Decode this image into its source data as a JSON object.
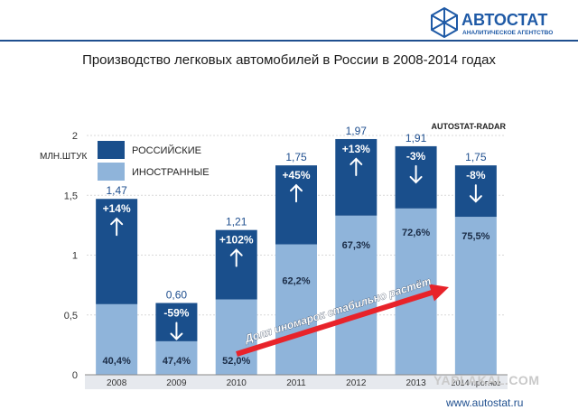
{
  "brand": {
    "name": "АВТОСТАТ",
    "tagline": "АНАЛИТИЧЕСКОЕ АГЕНТСТВО",
    "url": "www.autostat.ru",
    "source": "AUTOSTAT-RADAR"
  },
  "watermark": "YAPLAKAL.COM",
  "colors": {
    "russian": "#1a4f8c",
    "foreign": "#8fb4da",
    "accent": "#e8232a",
    "text_blue": "#1f4f8f"
  },
  "chart_data": {
    "type": "bar",
    "stacked": true,
    "title": "Производство легковых автомобилей в России в 2008-2014 годах",
    "ylabel": "МЛН.ШТУК",
    "ylim": [
      0,
      2
    ],
    "yticks": [
      "0",
      "0,5",
      "1",
      "1,5",
      "2"
    ],
    "ytick_values": [
      0,
      0.5,
      1,
      1.5,
      2
    ],
    "grid": true,
    "legend_position": "top-left",
    "categories": [
      "2008",
      "2009",
      "2010",
      "2011",
      "2012",
      "2013",
      "2014 прогноз"
    ],
    "series": [
      {
        "name": "ИНОСТРАННЫЕ",
        "values": [
          0.59,
          0.28,
          0.63,
          1.09,
          1.33,
          1.39,
          1.32
        ]
      },
      {
        "name": "РОССИЙСКИЕ",
        "values": [
          0.88,
          0.32,
          0.58,
          0.66,
          0.64,
          0.52,
          0.43
        ]
      }
    ],
    "totals": [
      "1,47",
      "0,60",
      "1,21",
      "1,75",
      "1,97",
      "1,91",
      "1,75"
    ],
    "total_values": [
      1.47,
      0.6,
      1.21,
      1.75,
      1.97,
      1.91,
      1.75
    ],
    "foreign_share": [
      "40,4%",
      "47,4%",
      "52,0%",
      "62,2%",
      "67,3%",
      "72,6%",
      "75,5%"
    ],
    "change": [
      "+14%",
      "-59%",
      "+102%",
      "+45%",
      "+13%",
      "-3%",
      "-8%"
    ],
    "change_direction": [
      "up",
      "down",
      "up",
      "up",
      "up",
      "down",
      "down"
    ],
    "annotation": "Доля иномарок стабильно растёт"
  }
}
